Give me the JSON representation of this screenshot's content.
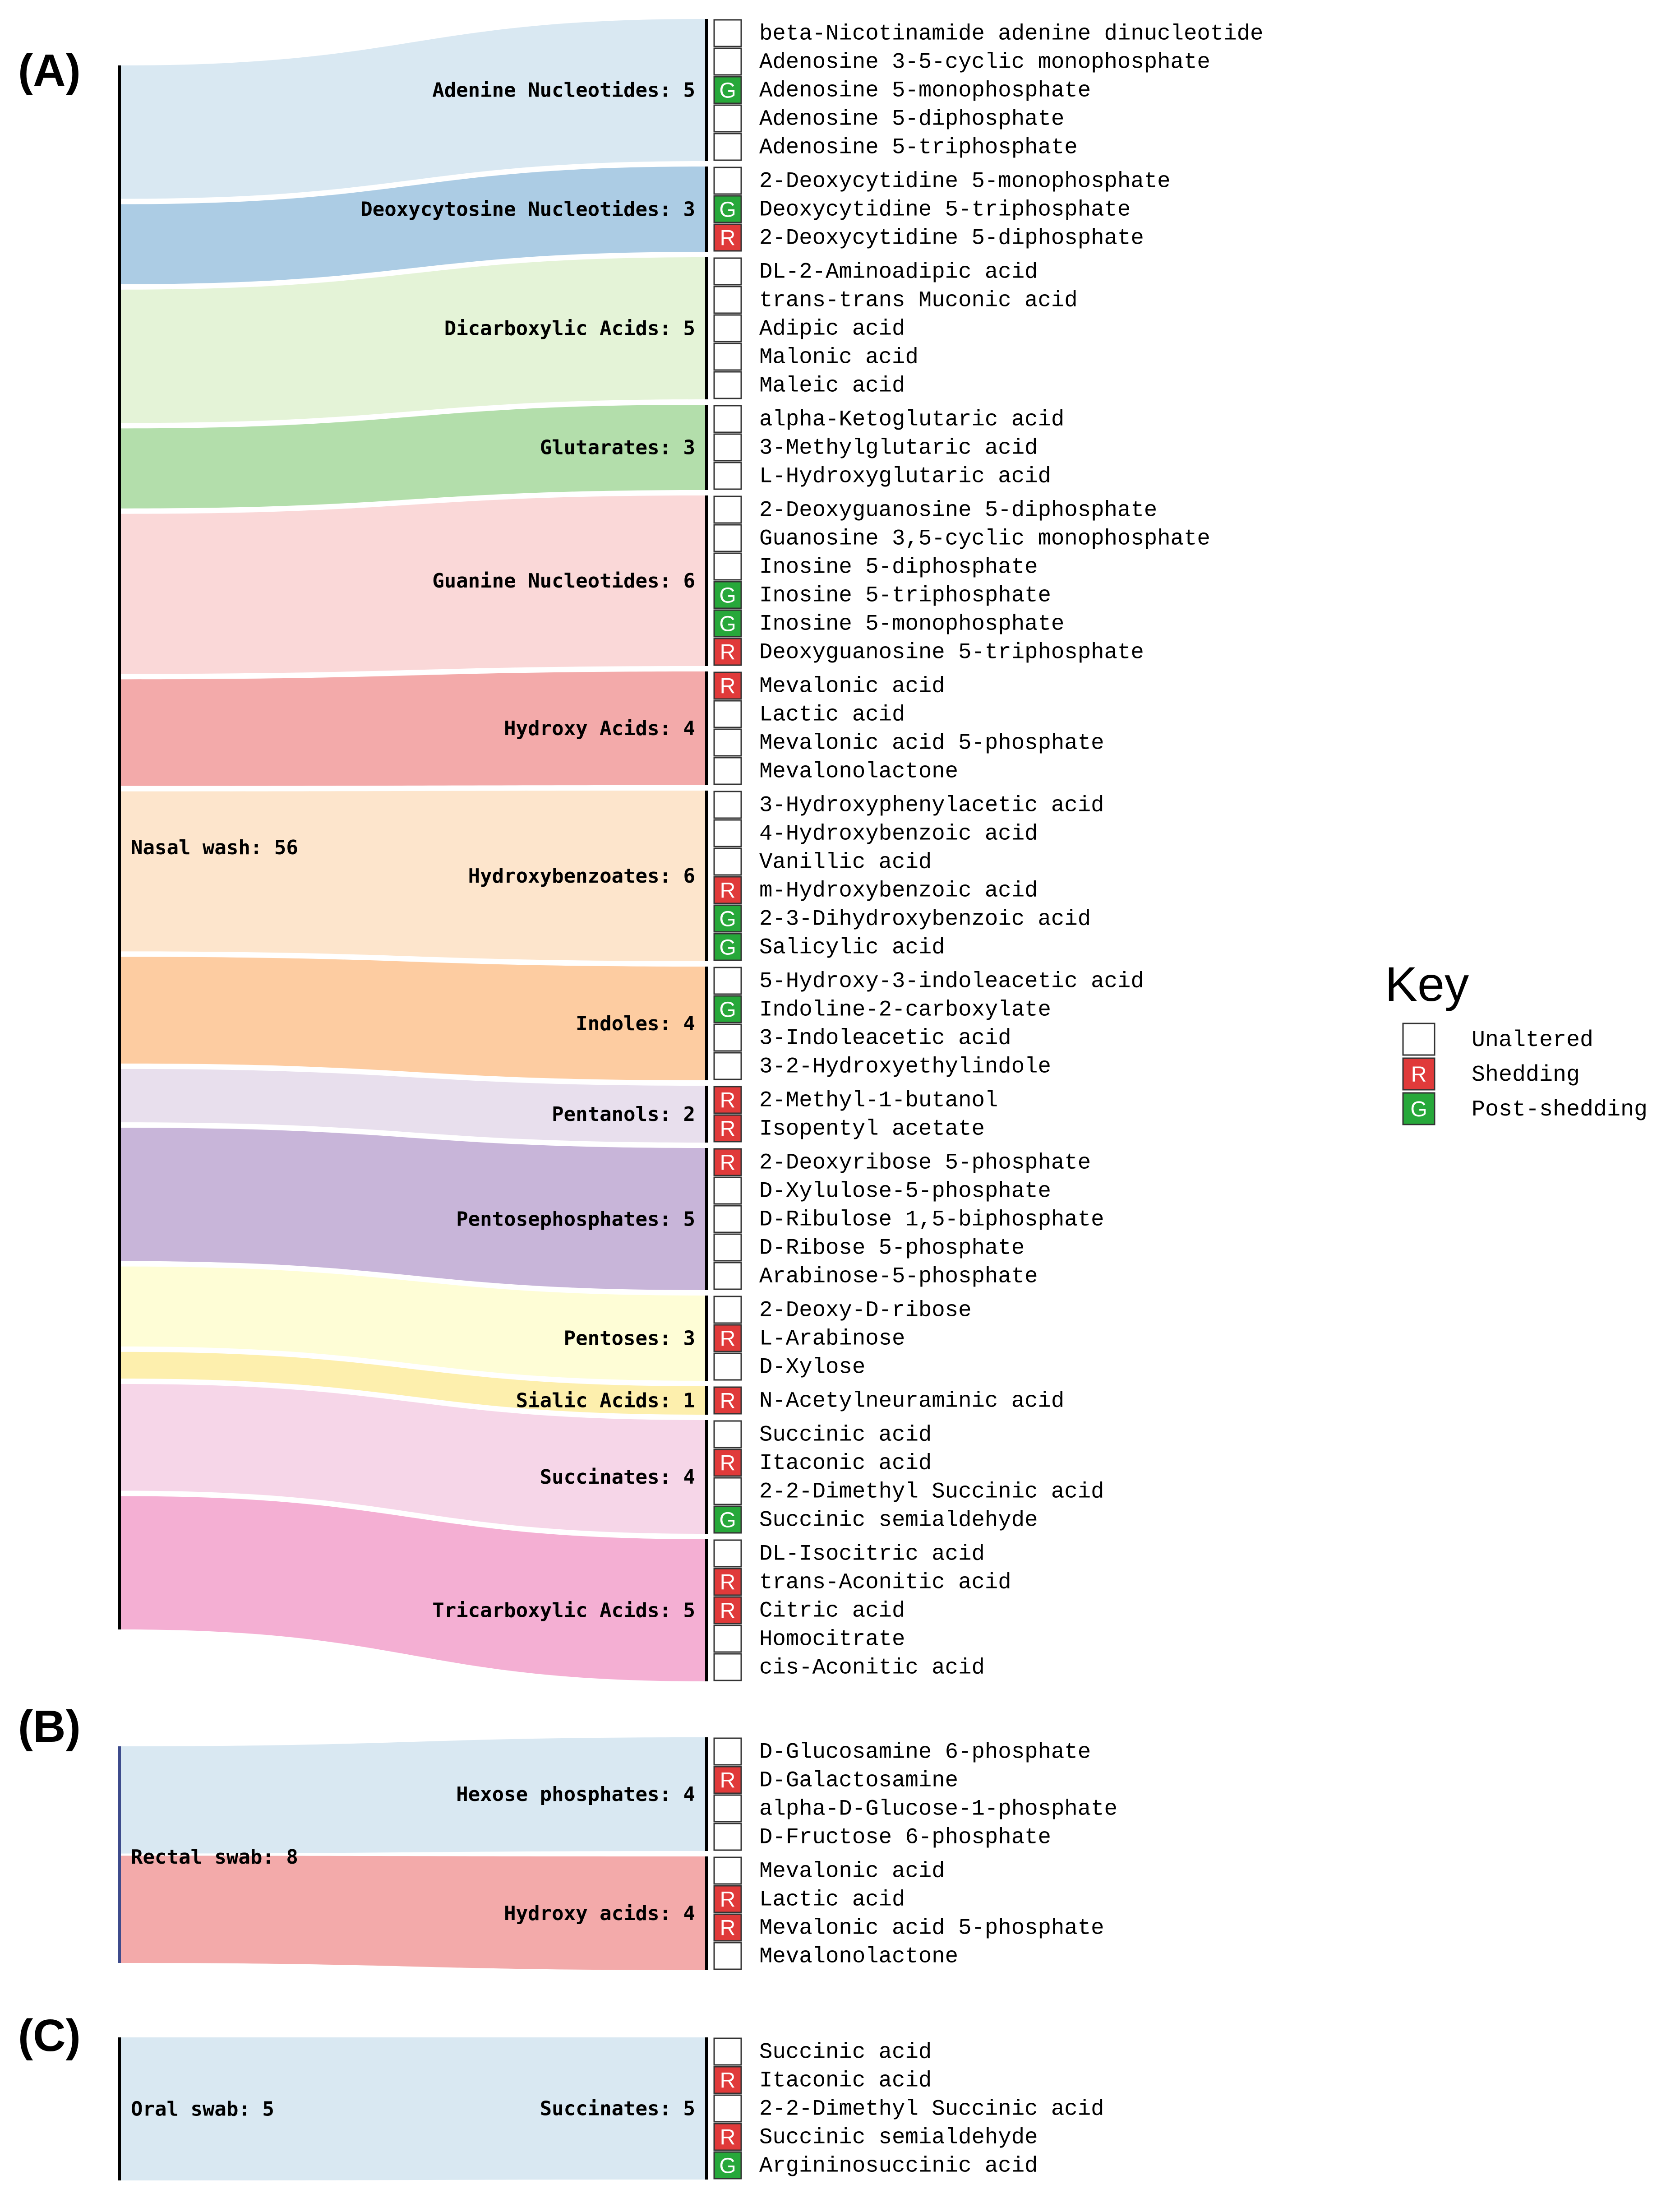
{
  "colors": {
    "unaltered": "#ffffff",
    "shedding": "#e03a3a",
    "post_shedding": "#27a83a"
  },
  "marks": {
    "R": "R",
    "G": "G"
  },
  "key": {
    "title": "Key",
    "entries": [
      {
        "code": "",
        "label": "Unaltered"
      },
      {
        "code": "R",
        "label": "Shedding"
      },
      {
        "code": "G",
        "label": "Post-shedding"
      }
    ]
  },
  "panels": [
    {
      "label": "(A)",
      "source": "Nasal wash: 56",
      "categories": [
        {
          "label": "Adenine Nucleotides: 5",
          "color": "#d6e6f1",
          "items": [
            {
              "name": "beta-Nicotinamide adenine dinucleotide",
              "mark": ""
            },
            {
              "name": "Adenosine 3-5-cyclic monophosphate",
              "mark": ""
            },
            {
              "name": "Adenosine 5-monophosphate",
              "mark": "G"
            },
            {
              "name": "Adenosine 5-diphosphate",
              "mark": ""
            },
            {
              "name": "Adenosine 5-triphosphate",
              "mark": ""
            }
          ]
        },
        {
          "label": "Deoxycytosine Nucleotides: 3",
          "color": "#a5c8e2",
          "items": [
            {
              "name": "2-Deoxycytidine 5-monophosphate",
              "mark": ""
            },
            {
              "name": "Deoxycytidine 5-triphosphate",
              "mark": "G"
            },
            {
              "name": "2-Deoxycytidine 5-diphosphate",
              "mark": "R"
            }
          ]
        },
        {
          "label": "Dicarboxylic Acids: 5",
          "color": "#e2f2d4",
          "items": [
            {
              "name": "DL-2-Aminoadipic acid",
              "mark": ""
            },
            {
              "name": "trans-trans Muconic acid",
              "mark": ""
            },
            {
              "name": "Adipic acid",
              "mark": ""
            },
            {
              "name": "Malonic acid",
              "mark": ""
            },
            {
              "name": "Maleic acid",
              "mark": ""
            }
          ]
        },
        {
          "label": "Glutarates: 3",
          "color": "#acdba4",
          "items": [
            {
              "name": "alpha-Ketoglutaric acid",
              "mark": ""
            },
            {
              "name": "3-Methylglutaric acid",
              "mark": ""
            },
            {
              "name": "L-Hydroxyglutaric acid",
              "mark": ""
            }
          ]
        },
        {
          "label": "Guanine Nucleotides: 6",
          "color": "#fad5d5",
          "items": [
            {
              "name": "2-Deoxyguanosine 5-diphosphate",
              "mark": ""
            },
            {
              "name": "Guanosine 3,5-cyclic monophosphate",
              "mark": ""
            },
            {
              "name": "Inosine 5-diphosphate",
              "mark": ""
            },
            {
              "name": "Inosine 5-triphosphate",
              "mark": "G"
            },
            {
              "name": "Inosine 5-monophosphate",
              "mark": "G"
            },
            {
              "name": "Deoxyguanosine 5-triphosphate",
              "mark": "R"
            }
          ]
        },
        {
          "label": "Hydroxy Acids: 4",
          "color": "#f2a3a3",
          "items": [
            {
              "name": "Mevalonic acid",
              "mark": "R"
            },
            {
              "name": "Lactic acid",
              "mark": ""
            },
            {
              "name": "Mevalonic acid 5-phosphate",
              "mark": ""
            },
            {
              "name": "Mevalonolactone",
              "mark": ""
            }
          ]
        },
        {
          "label": "Hydroxybenzoates: 6",
          "color": "#fde3c8",
          "items": [
            {
              "name": "3-Hydroxyphenylacetic acid",
              "mark": ""
            },
            {
              "name": "4-Hydroxybenzoic acid",
              "mark": ""
            },
            {
              "name": "Vanillic acid",
              "mark": ""
            },
            {
              "name": "m-Hydroxybenzoic acid",
              "mark": "R"
            },
            {
              "name": "2-3-Dihydroxybenzoic acid",
              "mark": "G"
            },
            {
              "name": "Salicylic acid",
              "mark": "G"
            }
          ]
        },
        {
          "label": "Indoles: 4",
          "color": "#fdc899",
          "items": [
            {
              "name": "5-Hydroxy-3-indoleacetic acid",
              "mark": ""
            },
            {
              "name": "Indoline-2-carboxylate",
              "mark": "G"
            },
            {
              "name": "3-Indoleacetic acid",
              "mark": ""
            },
            {
              "name": "3-2-Hydroxyethylindole",
              "mark": ""
            }
          ]
        },
        {
          "label": "Pentanols: 2",
          "color": "#e6dcec",
          "items": [
            {
              "name": "2-Methyl-1-butanol",
              "mark": "R"
            },
            {
              "name": "Isopentyl acetate",
              "mark": "R"
            }
          ]
        },
        {
          "label": "Pentosephosphates: 5",
          "color": "#c3afd6",
          "items": [
            {
              "name": "2-Deoxyribose 5-phosphate",
              "mark": "R"
            },
            {
              "name": "D-Xylulose-5-phosphate",
              "mark": ""
            },
            {
              "name": "D-Ribulose 1,5-biphosphate",
              "mark": ""
            },
            {
              "name": "D-Ribose 5-phosphate",
              "mark": ""
            },
            {
              "name": "Arabinose-5-phosphate",
              "mark": ""
            }
          ]
        },
        {
          "label": "Pentoses: 3",
          "color": "#fefdd2",
          "items": [
            {
              "name": "2-Deoxy-D-ribose",
              "mark": ""
            },
            {
              "name": "L-Arabinose",
              "mark": "R"
            },
            {
              "name": "D-Xylose",
              "mark": ""
            }
          ]
        },
        {
          "label": "Sialic Acids: 1",
          "color": "#fdeea6",
          "items": [
            {
              "name": "N-Acetylneuraminic acid",
              "mark": "R"
            }
          ]
        },
        {
          "label": "Succinates: 4",
          "color": "#f5d2e6",
          "items": [
            {
              "name": "Succinic acid",
              "mark": ""
            },
            {
              "name": "Itaconic acid",
              "mark": "R"
            },
            {
              "name": "2-2-Dimethyl Succinic acid",
              "mark": ""
            },
            {
              "name": "Succinic semialdehyde",
              "mark": "G"
            }
          ]
        },
        {
          "label": "Tricarboxylic Acids: 5",
          "color": "#f3a8cf",
          "items": [
            {
              "name": "DL-Isocitric acid",
              "mark": ""
            },
            {
              "name": "trans-Aconitic acid",
              "mark": "R"
            },
            {
              "name": "Citric acid",
              "mark": "R"
            },
            {
              "name": "Homocitrate",
              "mark": ""
            },
            {
              "name": "cis-Aconitic acid",
              "mark": ""
            }
          ]
        }
      ]
    },
    {
      "label": "(B)",
      "source": "Rectal swab: 8",
      "categories": [
        {
          "label": "Hexose phosphates: 4",
          "color": "#d6e6f1",
          "items": [
            {
              "name": "D-Glucosamine 6-phosphate",
              "mark": ""
            },
            {
              "name": "D-Galactosamine",
              "mark": "R"
            },
            {
              "name": "alpha-D-Glucose-1-phosphate",
              "mark": ""
            },
            {
              "name": "D-Fructose 6-phosphate",
              "mark": ""
            }
          ]
        },
        {
          "label": "Hydroxy acids: 4",
          "color": "#f2a3a3",
          "items": [
            {
              "name": "Mevalonic acid",
              "mark": ""
            },
            {
              "name": "Lactic acid",
              "mark": "R"
            },
            {
              "name": "Mevalonic acid 5-phosphate",
              "mark": "R"
            },
            {
              "name": "Mevalonolactone",
              "mark": ""
            }
          ]
        }
      ]
    },
    {
      "label": "(C)",
      "source": "Oral swab: 5",
      "categories": [
        {
          "label": "Succinates: 5",
          "color": "#d6e6f1",
          "items": [
            {
              "name": "Succinic acid",
              "mark": ""
            },
            {
              "name": "Itaconic acid",
              "mark": "R"
            },
            {
              "name": "2-2-Dimethyl Succinic acid",
              "mark": ""
            },
            {
              "name": "Succinic semialdehyde",
              "mark": "R"
            },
            {
              "name": "Argininosuccinic acid",
              "mark": "G"
            }
          ]
        }
      ]
    }
  ]
}
